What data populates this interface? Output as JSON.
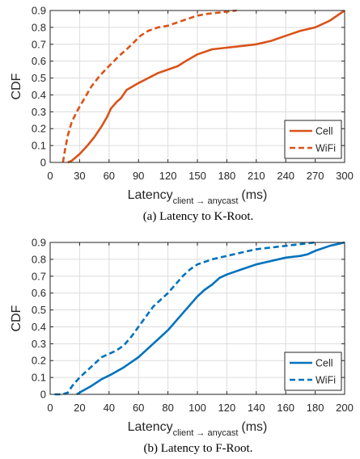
{
  "chart_data": [
    {
      "type": "line",
      "caption": "(a) Latency to K-Root.",
      "ylabel": "CDF",
      "xlabel": {
        "main": "Latency",
        "subscript": "client → anycast",
        "unit": "(ms)"
      },
      "xlim": [
        0,
        300
      ],
      "ylim": [
        0,
        0.9
      ],
      "xticks": [
        "0",
        "30",
        "60",
        "90",
        "120",
        "150",
        "180",
        "210",
        "240",
        "270",
        "300"
      ],
      "yticks": [
        "0",
        "0.1",
        "0.2",
        "0.3",
        "0.4",
        "0.5",
        "0.6",
        "0.7",
        "0.8",
        "0.9"
      ],
      "grid": true,
      "legend_position": "bottom-right",
      "color": "#d95319",
      "series": [
        {
          "name": "Cell",
          "style": "solid",
          "x": [
            18,
            22,
            30,
            38,
            45,
            52,
            58,
            62,
            68,
            72,
            78,
            90,
            100,
            110,
            120,
            130,
            138,
            150,
            165,
            180,
            195,
            210,
            225,
            240,
            255,
            270,
            285,
            300
          ],
          "y": [
            0.0,
            0.01,
            0.05,
            0.1,
            0.15,
            0.21,
            0.27,
            0.32,
            0.36,
            0.38,
            0.43,
            0.47,
            0.5,
            0.53,
            0.55,
            0.57,
            0.6,
            0.64,
            0.67,
            0.68,
            0.69,
            0.7,
            0.72,
            0.75,
            0.78,
            0.8,
            0.84,
            0.9
          ]
        },
        {
          "name": "WiFi",
          "style": "dashed",
          "x": [
            13,
            15,
            18,
            22,
            28,
            35,
            42,
            50,
            58,
            65,
            70,
            78,
            85,
            92,
            100,
            110,
            120,
            130,
            140,
            150,
            160,
            175,
            190
          ],
          "y": [
            0.0,
            0.07,
            0.16,
            0.24,
            0.31,
            0.38,
            0.45,
            0.51,
            0.56,
            0.6,
            0.63,
            0.67,
            0.71,
            0.75,
            0.78,
            0.8,
            0.81,
            0.83,
            0.85,
            0.87,
            0.88,
            0.89,
            0.9
          ]
        }
      ]
    },
    {
      "type": "line",
      "caption": "(b) Latency to F-Root.",
      "ylabel": "CDF",
      "xlabel": {
        "main": "Latency",
        "subscript": "client → anycast",
        "unit": "(ms)"
      },
      "xlim": [
        0,
        200
      ],
      "ylim": [
        0,
        0.9
      ],
      "xticks": [
        "0",
        "20",
        "40",
        "60",
        "80",
        "100",
        "120",
        "140",
        "160",
        "180",
        "200"
      ],
      "yticks": [
        "0",
        "0.1",
        "0.2",
        "0.3",
        "0.4",
        "0.5",
        "0.6",
        "0.7",
        "0.8",
        "0.9"
      ],
      "grid": true,
      "legend_position": "bottom-right",
      "color": "#0072bd",
      "series": [
        {
          "name": "Cell",
          "style": "solid",
          "x": [
            18,
            22,
            28,
            35,
            42,
            50,
            55,
            60,
            65,
            70,
            75,
            80,
            85,
            90,
            95,
            100,
            105,
            110,
            115,
            120,
            130,
            140,
            150,
            160,
            170,
            175,
            180,
            190,
            200
          ],
          "y": [
            0.0,
            0.02,
            0.05,
            0.09,
            0.12,
            0.16,
            0.19,
            0.22,
            0.26,
            0.3,
            0.34,
            0.38,
            0.43,
            0.48,
            0.53,
            0.58,
            0.62,
            0.65,
            0.69,
            0.71,
            0.74,
            0.77,
            0.79,
            0.81,
            0.82,
            0.83,
            0.85,
            0.88,
            0.9
          ]
        },
        {
          "name": "WiFi",
          "style": "dashed",
          "x": [
            3,
            8,
            12,
            15,
            20,
            25,
            30,
            35,
            40,
            45,
            50,
            55,
            60,
            65,
            70,
            75,
            80,
            85,
            90,
            95,
            100,
            110,
            120,
            130,
            140,
            150,
            160,
            170,
            180
          ],
          "y": [
            0.0,
            0.0,
            0.01,
            0.05,
            0.1,
            0.14,
            0.18,
            0.22,
            0.24,
            0.26,
            0.29,
            0.34,
            0.4,
            0.46,
            0.52,
            0.56,
            0.6,
            0.65,
            0.7,
            0.74,
            0.77,
            0.8,
            0.82,
            0.84,
            0.86,
            0.87,
            0.88,
            0.89,
            0.9
          ]
        }
      ]
    }
  ]
}
